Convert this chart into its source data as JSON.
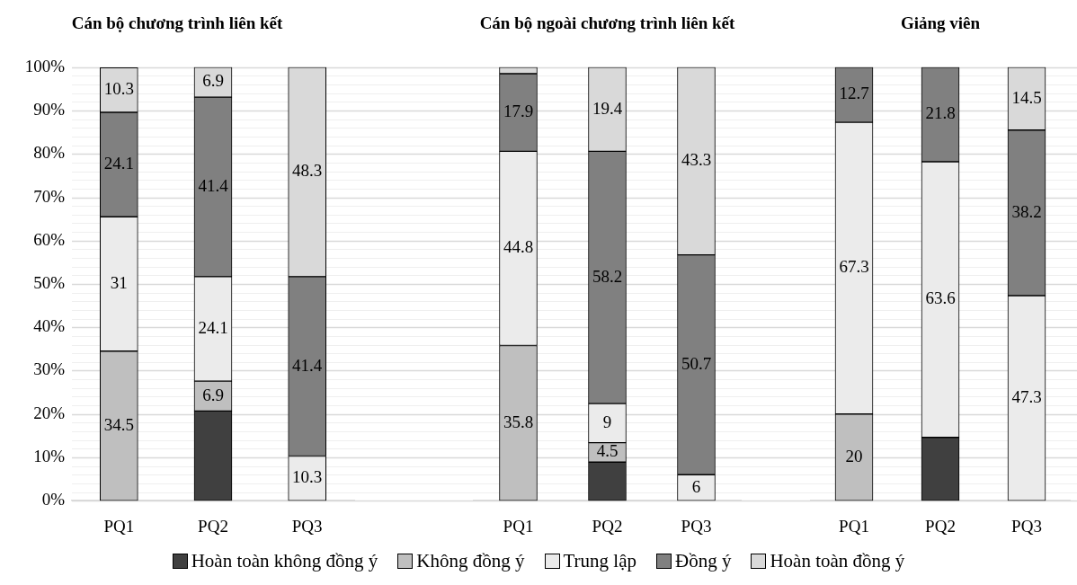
{
  "chart_data": [
    {
      "type": "bar",
      "title": "Cán bộ chương trình liên kết",
      "categories": [
        "PQ1",
        "PQ2",
        "PQ3"
      ],
      "stacked": true,
      "grid": "y",
      "legend": "bottom",
      "ylim": [
        0,
        100
      ],
      "yticks": [
        {
          "value": 0,
          "label": "0%"
        },
        {
          "value": 2,
          "label": null
        },
        {
          "value": 4,
          "label": null
        },
        {
          "value": 6,
          "label": null
        },
        {
          "value": 8,
          "label": null
        },
        {
          "value": 10,
          "label": "10%"
        },
        {
          "value": 12,
          "label": null
        },
        {
          "value": 14,
          "label": null
        },
        {
          "value": 16,
          "label": null
        },
        {
          "value": 18,
          "label": null
        },
        {
          "value": 20,
          "label": "20%"
        },
        {
          "value": 22,
          "label": null
        },
        {
          "value": 24,
          "label": null
        },
        {
          "value": 26,
          "label": null
        },
        {
          "value": 28,
          "label": null
        },
        {
          "value": 30,
          "label": "30%"
        },
        {
          "value": 32,
          "label": null
        },
        {
          "value": 34,
          "label": null
        },
        {
          "value": 36,
          "label": null
        },
        {
          "value": 38,
          "label": null
        },
        {
          "value": 40,
          "label": "40%"
        },
        {
          "value": 42,
          "label": null
        },
        {
          "value": 44,
          "label": null
        },
        {
          "value": 46,
          "label": null
        },
        {
          "value": 48,
          "label": null
        },
        {
          "value": 50,
          "label": "50%"
        },
        {
          "value": 52,
          "label": null
        },
        {
          "value": 54,
          "label": null
        },
        {
          "value": 56,
          "label": null
        },
        {
          "value": 58,
          "label": null
        },
        {
          "value": 60,
          "label": "60%"
        },
        {
          "value": 62,
          "label": null
        },
        {
          "value": 64,
          "label": null
        },
        {
          "value": 66,
          "label": null
        },
        {
          "value": 68,
          "label": null
        },
        {
          "value": 70,
          "label": "70%"
        },
        {
          "value": 72,
          "label": null
        },
        {
          "value": 74,
          "label": null
        },
        {
          "value": 76,
          "label": null
        },
        {
          "value": 78,
          "label": null
        },
        {
          "value": 80,
          "label": "80%"
        },
        {
          "value": 82,
          "label": null
        },
        {
          "value": 84,
          "label": null
        },
        {
          "value": 86,
          "label": null
        },
        {
          "value": 88,
          "label": null
        },
        {
          "value": 90,
          "label": "90%"
        },
        {
          "value": 92,
          "label": null
        },
        {
          "value": 94,
          "label": null
        },
        {
          "value": 96,
          "label": null
        },
        {
          "value": 98,
          "label": null
        },
        {
          "value": 100,
          "label": "100%"
        }
      ],
      "series": [
        {
          "name": "Hoàn toàn không đồng ý",
          "color": "#404040",
          "values": [
            0,
            20.7,
            0
          ],
          "value_labels": [
            null,
            null,
            null
          ]
        },
        {
          "name": "Không đồng ý",
          "color": "#bfbfbf",
          "values": [
            34.5,
            6.9,
            0
          ],
          "value_labels": [
            "34.5",
            "6.9",
            null
          ]
        },
        {
          "name": "Trung lập",
          "color": "#ebebeb",
          "values": [
            31,
            24.1,
            10.3
          ],
          "value_labels": [
            "31",
            "24.1",
            "10.3"
          ]
        },
        {
          "name": "Đồng ý",
          "color": "#808080",
          "values": [
            24.1,
            41.4,
            41.4
          ],
          "value_labels": [
            "24.1",
            "41.4",
            "41.4"
          ]
        },
        {
          "name": "Hoàn toàn đồng ý",
          "color": "#d9d9d9",
          "values": [
            10.3,
            6.9,
            48.3
          ],
          "value_labels": [
            "10.3",
            "6.9",
            "48.3"
          ]
        }
      ]
    },
    {
      "type": "bar",
      "title": "Cán bộ ngoài chương trình liên kết",
      "categories": [
        "PQ1",
        "PQ2",
        "PQ3"
      ],
      "stacked": true,
      "grid": "y",
      "tick_labels": "x",
      "ylim": [
        0,
        100
      ],
      "series": [
        {
          "color": "#404040",
          "values": [
            0,
            8.9,
            0
          ],
          "value_labels": [
            null,
            null,
            null
          ]
        },
        {
          "color": "#bfbfbf",
          "values": [
            35.8,
            4.5,
            0
          ],
          "value_labels": [
            "35.8",
            "4.5",
            null
          ]
        },
        {
          "color": "#ebebeb",
          "values": [
            44.8,
            9,
            6
          ],
          "value_labels": [
            "44.8",
            "9",
            "6"
          ]
        },
        {
          "color": "#808080",
          "values": [
            17.9,
            58.2,
            50.7
          ],
          "value_labels": [
            "17.9",
            "58.2",
            "50.7"
          ]
        },
        {
          "color": "#d9d9d9",
          "values": [
            1.5,
            19.4,
            43.3
          ],
          "value_labels": [
            null,
            "19.4",
            "43.3"
          ]
        }
      ]
    },
    {
      "type": "bar",
      "title": "Giảng viên",
      "categories": [
        "PQ1",
        "PQ2",
        "PQ3"
      ],
      "stacked": true,
      "grid": "y",
      "tick_labels": "x",
      "ylim": [
        0,
        100
      ],
      "series": [
        {
          "color": "#404040",
          "values": [
            0,
            14.6,
            0
          ],
          "value_labels": [
            null,
            null,
            null
          ]
        },
        {
          "color": "#bfbfbf",
          "values": [
            20,
            0,
            0
          ],
          "value_labels": [
            "20",
            null,
            null
          ]
        },
        {
          "color": "#ebebeb",
          "values": [
            67.3,
            63.6,
            47.3
          ],
          "value_labels": [
            "67.3",
            "63.6",
            "47.3"
          ]
        },
        {
          "color": "#808080",
          "values": [
            12.7,
            21.8,
            38.2
          ],
          "value_labels": [
            "12.7",
            "21.8",
            "38.2"
          ]
        },
        {
          "color": "#d9d9d9",
          "values": [
            0,
            0,
            14.5
          ],
          "value_labels": [
            null,
            null,
            "14.5"
          ]
        }
      ]
    }
  ]
}
